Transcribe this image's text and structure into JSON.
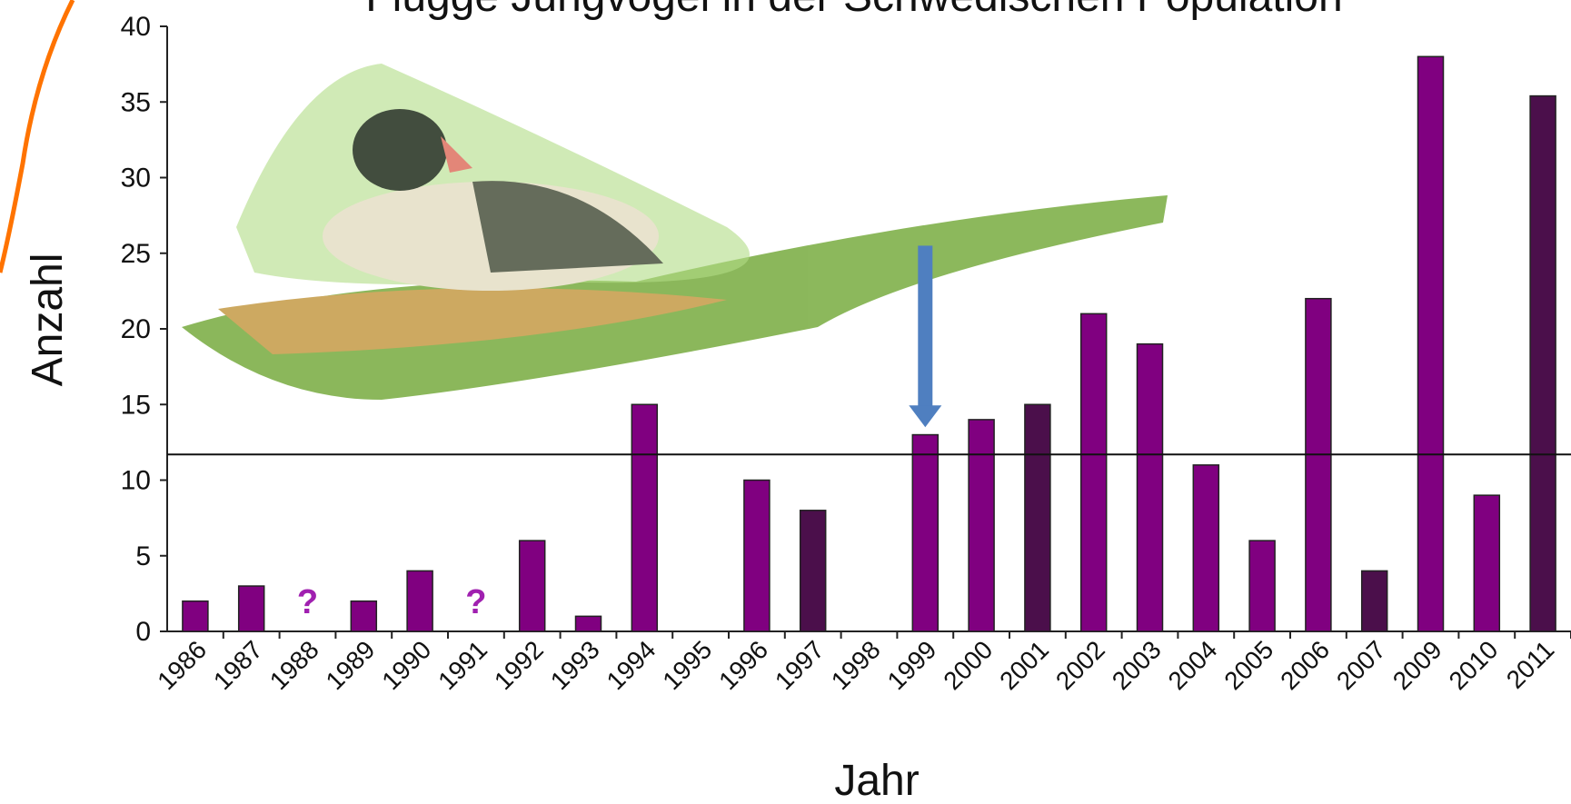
{
  "chart_data": {
    "type": "bar",
    "title": "Flügge Jungvögel in der Schwedischen Population",
    "x_label": "Jahr",
    "y_label": "Anzahl",
    "categories": [
      "1986",
      "1987",
      "1988",
      "1989",
      "1990",
      "1991",
      "1992",
      "1993",
      "1994",
      "1995",
      "1996",
      "1997",
      "1998",
      "1999",
      "2000",
      "2001",
      "2002",
      "2003",
      "2004",
      "2005",
      "2006",
      "2007",
      "2009",
      "2010",
      "2011"
    ],
    "values": [
      2,
      3,
      null,
      2,
      4,
      null,
      6,
      1,
      15,
      0,
      10,
      8,
      0,
      13,
      14,
      15,
      21,
      19,
      11,
      6,
      22,
      4,
      38,
      9,
      35.4
    ],
    "value_labels": [
      null,
      null,
      "?",
      null,
      null,
      "?",
      null,
      null,
      null,
      null,
      null,
      null,
      null,
      null,
      null,
      null,
      null,
      null,
      null,
      null,
      null,
      null,
      null,
      null,
      null
    ],
    "colors": [
      "#800080",
      "#800080",
      "#800080",
      "#800080",
      "#800080",
      "#800080",
      "#800080",
      "#800080",
      "#800080",
      "#800080",
      "#800080",
      "#4b0f4b",
      "#800080",
      "#800080",
      "#800080",
      "#4b0f4b",
      "#800080",
      "#800080",
      "#800080",
      "#800080",
      "#800080",
      "#4b0f4b",
      "#800080",
      "#800080",
      "#4b0f4b"
    ],
    "reference_line": 11.7,
    "arrow": {
      "category_index": 13,
      "from": 25.5,
      "to": 13.5,
      "color": "#4f7fc0"
    },
    "ylim": [
      0,
      40
    ],
    "yticks": [
      0,
      5,
      10,
      15,
      20,
      25,
      30,
      35,
      40
    ]
  }
}
